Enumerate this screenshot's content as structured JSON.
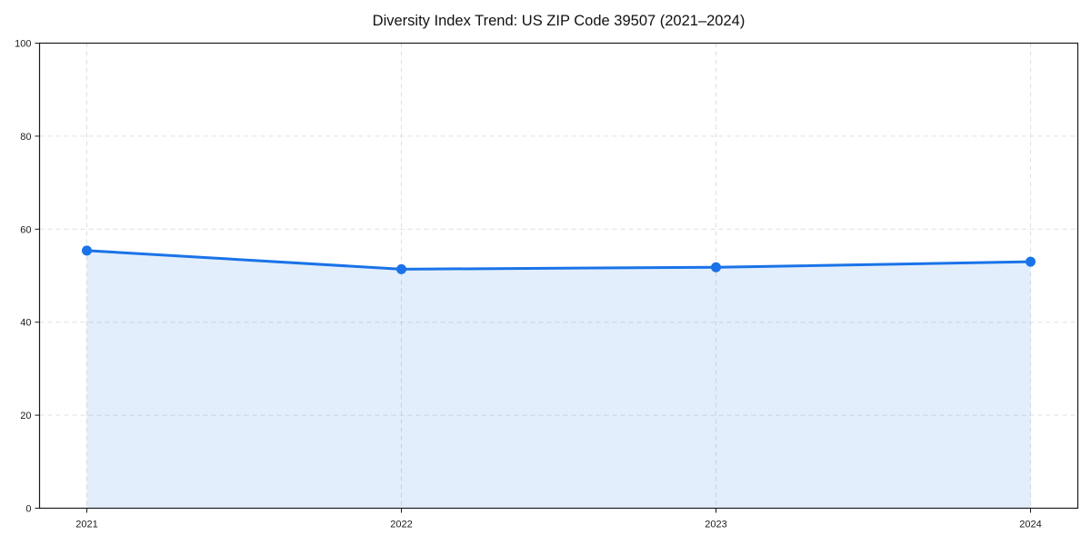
{
  "chart_data": {
    "type": "area",
    "title": "Diversity Index Trend: US ZIP Code 39507 (2021–2024)",
    "x": [
      2021,
      2022,
      2023,
      2024
    ],
    "categories": [
      "2021",
      "2022",
      "2023",
      "2024"
    ],
    "series": [
      {
        "name": "Diversity Index",
        "values": [
          55.4,
          51.4,
          51.8,
          53.0
        ]
      }
    ],
    "xlabel": "",
    "ylabel": "",
    "ylim": [
      0,
      100
    ],
    "yticks": [
      0,
      20,
      40,
      60,
      80,
      100
    ],
    "ytick_labels": [
      "0",
      "20",
      "40",
      "60",
      "80",
      "100"
    ],
    "xtick_labels": [
      "2021",
      "2022",
      "2023",
      "2024"
    ],
    "grid": "on",
    "grid_style": "dashed",
    "legend_position": "none",
    "marker": "circle",
    "colors": {
      "line": "#1a73e8",
      "marker": "#1a73e8",
      "fill": "rgba(26,115,232,0.12)",
      "grid": "#e0e0e0",
      "axis": "#1a1a1a",
      "tick_text": "#1a1a1a",
      "title_text": "#111111",
      "background": "#ffffff"
    }
  }
}
